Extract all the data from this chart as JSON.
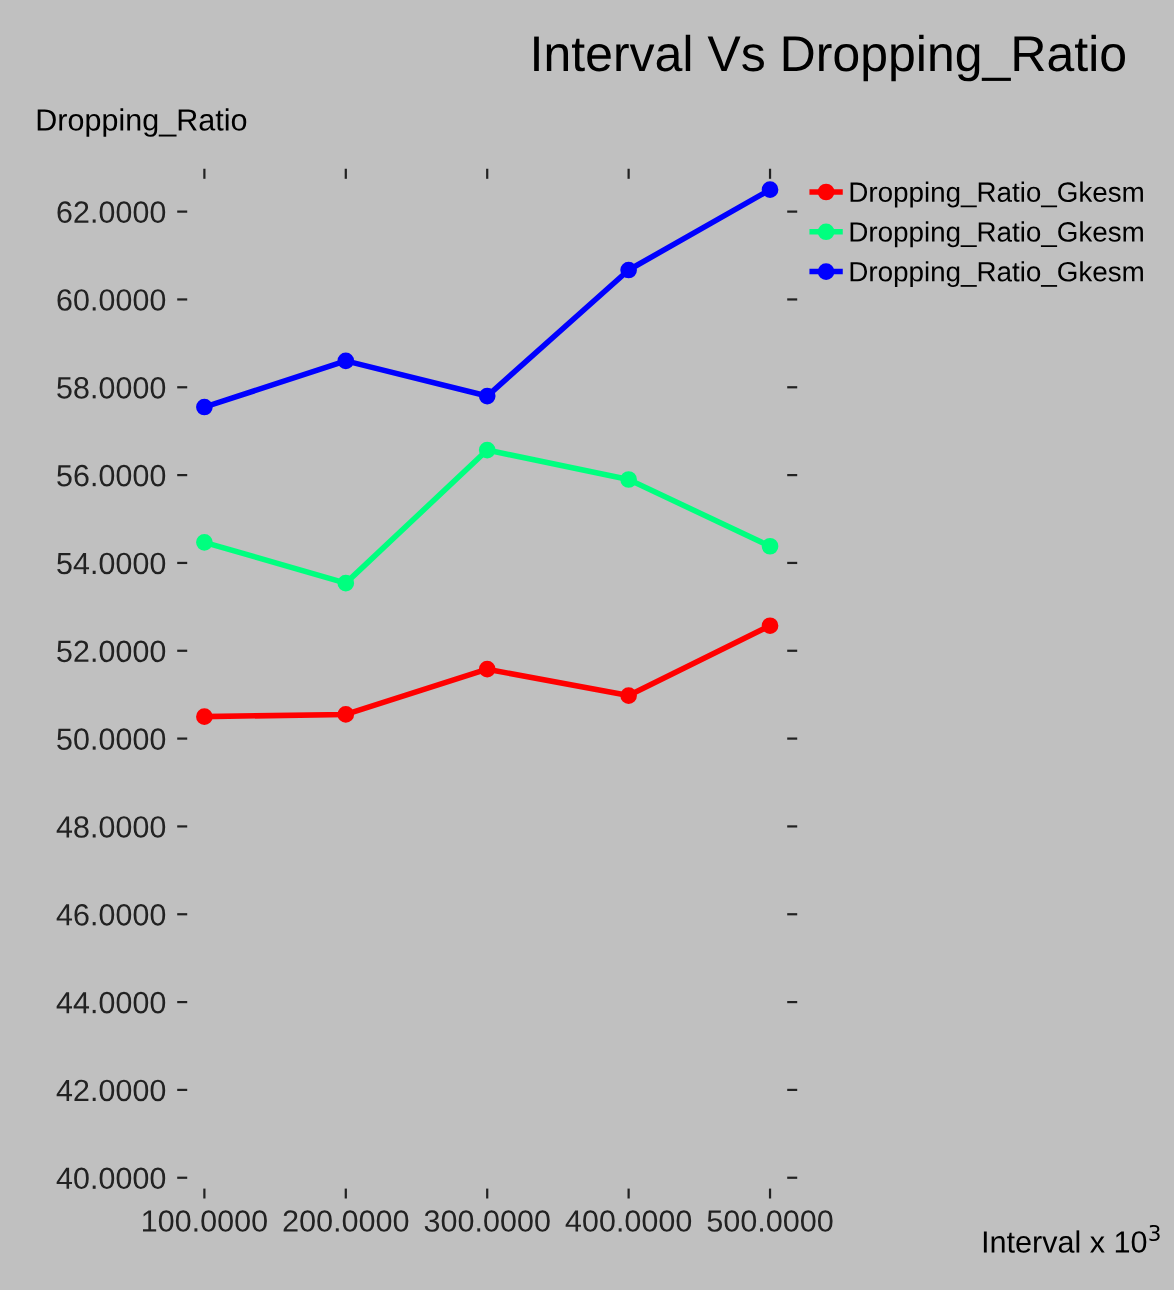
{
  "chart_data": {
    "type": "line",
    "title": "Interval Vs Dropping_Ratio",
    "ylabel": "Dropping_Ratio",
    "xlabel": "Interval x 10$^{3}$",
    "x": [
      100,
      200,
      300,
      400,
      500
    ],
    "series": [
      {
        "name": "Dropping_Ratio_Gkesm",
        "color": "#ff0000",
        "values": [
          50.5,
          50.55,
          51.58,
          50.98,
          52.57
        ]
      },
      {
        "name": "Dropping_Ratio_Gkesm",
        "color": "#00ff7f",
        "values": [
          54.47,
          53.54,
          56.57,
          55.9,
          54.38
        ]
      },
      {
        "name": "Dropping_Ratio_Gkesm",
        "color": "#0000ff",
        "values": [
          57.55,
          58.6,
          57.8,
          60.67,
          62.5
        ]
      }
    ],
    "xlim": [
      80,
      520
    ],
    "ylim": [
      39.5,
      63
    ],
    "xticks": [
      {
        "value": 100,
        "label": "100.0000"
      },
      {
        "value": 200,
        "label": "200.0000"
      },
      {
        "value": 300,
        "label": "300.0000"
      },
      {
        "value": 400,
        "label": "400.0000"
      },
      {
        "value": 500,
        "label": "500.0000"
      }
    ],
    "yticks": [
      {
        "value": 40,
        "label": "40.0000"
      },
      {
        "value": 42,
        "label": "42.0000"
      },
      {
        "value": 44,
        "label": "44.0000"
      },
      {
        "value": 46,
        "label": "46.0000"
      },
      {
        "value": 48,
        "label": "48.0000"
      },
      {
        "value": 50,
        "label": "50.0000"
      },
      {
        "value": 52,
        "label": "52.0000"
      },
      {
        "value": 54,
        "label": "54.0000"
      },
      {
        "value": 56,
        "label": "56.0000"
      },
      {
        "value": 58,
        "label": "58.0000"
      },
      {
        "value": 60,
        "label": "60.0000"
      },
      {
        "value": 62,
        "label": "62.0000"
      }
    ],
    "marker": "circle",
    "line_style": "solid",
    "grid": false,
    "legend": "top right"
  }
}
